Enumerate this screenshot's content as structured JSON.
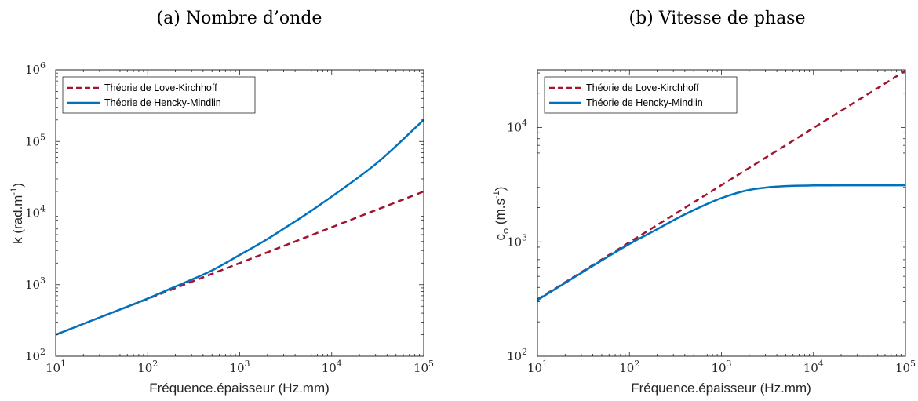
{
  "chart_data": [
    {
      "type": "line",
      "title": "(a) Nombre d’onde",
      "xlabel": "Fréquence.épaisseur (Hz.mm)",
      "ylabel_main": "k (rad.m",
      "ylabel_sup": "-1",
      "ylabel_end": ")",
      "x_scale": "log",
      "y_scale": "log",
      "xlim": [
        10,
        100000
      ],
      "ylim": [
        100,
        1000000
      ],
      "x_ticks": [
        {
          "base": "10",
          "exp": "1"
        },
        {
          "base": "10",
          "exp": "2"
        },
        {
          "base": "10",
          "exp": "3"
        },
        {
          "base": "10",
          "exp": "4"
        },
        {
          "base": "10",
          "exp": "5"
        }
      ],
      "y_ticks": [
        {
          "base": "10",
          "exp": "2"
        },
        {
          "base": "10",
          "exp": "3"
        },
        {
          "base": "10",
          "exp": "4"
        },
        {
          "base": "10",
          "exp": "5"
        },
        {
          "base": "10",
          "exp": "6"
        }
      ],
      "legend_position": "top-left",
      "series": [
        {
          "name": "Théorie de Love-Kirchhoff",
          "color": "#a2142f",
          "style": "dashed",
          "x": [
            10,
            31.6,
            100,
            316,
            1000,
            3160,
            10000,
            31600,
            100000
          ],
          "y": [
            200,
            356,
            633,
            1125,
            2000,
            3557,
            6325,
            11250,
            20000
          ]
        },
        {
          "name": "Théorie de Hencky-Mindlin",
          "color": "#0072bd",
          "style": "solid",
          "x": [
            10,
            31.6,
            100,
            200,
            316,
            500,
            1000,
            2000,
            3160,
            5000,
            10000,
            31600,
            100000
          ],
          "y": [
            200,
            357,
            640,
            940,
            1210,
            1580,
            2600,
            4330,
            6300,
            9200,
            17000,
            51000,
            200000
          ]
        }
      ]
    },
    {
      "type": "line",
      "title": "(b) Vitesse de phase",
      "xlabel": "Fréquence.épaisseur (Hz.mm)",
      "ylabel_main": "c",
      "ylabel_sub": "φ",
      "ylabel_rest": " (m.s",
      "ylabel_sup": "-1",
      "ylabel_end": ")",
      "x_scale": "log",
      "y_scale": "log",
      "xlim": [
        10,
        100000
      ],
      "ylim": [
        100,
        32000
      ],
      "x_ticks": [
        {
          "base": "10",
          "exp": "1"
        },
        {
          "base": "10",
          "exp": "2"
        },
        {
          "base": "10",
          "exp": "3"
        },
        {
          "base": "10",
          "exp": "4"
        },
        {
          "base": "10",
          "exp": "5"
        }
      ],
      "y_ticks": [
        {
          "base": "10",
          "exp": "2"
        },
        {
          "base": "10",
          "exp": "3"
        },
        {
          "base": "10",
          "exp": "4"
        }
      ],
      "legend_position": "top-left",
      "series": [
        {
          "name": "Théorie de Love-Kirchhoff",
          "color": "#a2142f",
          "style": "dashed",
          "x": [
            10,
            31.6,
            100,
            316,
            1000,
            3160,
            10000,
            31600,
            100000
          ],
          "y": [
            314,
            558,
            993,
            1766,
            3140,
            5583,
            9930,
            17660,
            31400
          ]
        },
        {
          "name": "Théorie de Hencky-Mindlin",
          "color": "#0072bd",
          "style": "solid",
          "x": [
            10,
            31.6,
            100,
            200,
            316,
            500,
            1000,
            2000,
            3160,
            5000,
            10000,
            31600,
            100000
          ],
          "y": [
            310,
            550,
            960,
            1290,
            1580,
            1900,
            2420,
            2850,
            3000,
            3080,
            3120,
            3130,
            3130
          ]
        }
      ]
    }
  ]
}
